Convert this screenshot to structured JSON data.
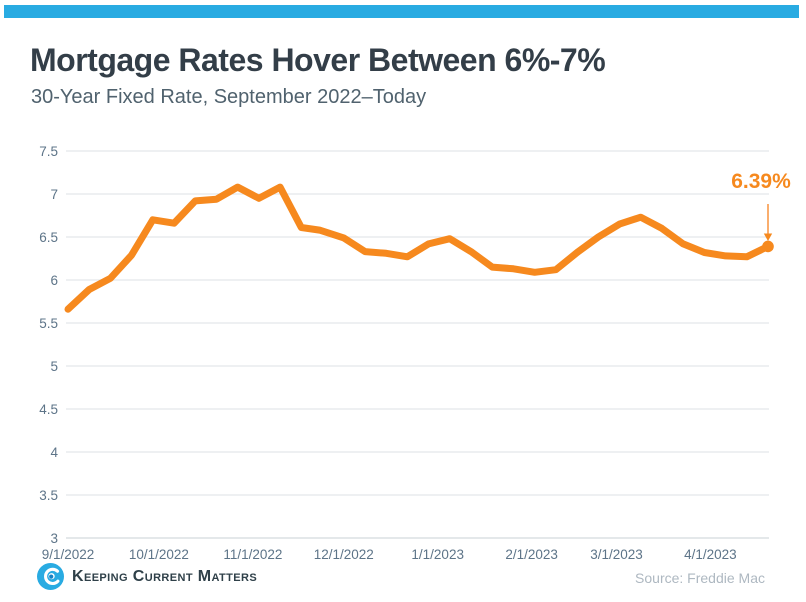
{
  "header": {
    "title": "Mortgage Rates Hover Between 6%-7%",
    "subtitle": "30-Year Fixed Rate, September 2022–Today"
  },
  "chart_data": {
    "type": "line",
    "title": "Mortgage Rates Hover Between 6%-7%",
    "subtitle": "30-Year Fixed Rate, September 2022–Today",
    "series": [
      {
        "name": "30-Year Fixed Rate (%)",
        "color": "#F6891E",
        "dates": [
          "9/1/2022",
          "9/8/2022",
          "9/15/2022",
          "9/22/2022",
          "9/29/2022",
          "10/6/2022",
          "10/13/2022",
          "10/20/2022",
          "10/27/2022",
          "11/3/2022",
          "11/10/2022",
          "11/17/2022",
          "11/23/2022",
          "12/1/2022",
          "12/8/2022",
          "12/15/2022",
          "12/22/2022",
          "12/29/2022",
          "1/5/2023",
          "1/12/2023",
          "1/19/2023",
          "1/26/2023",
          "2/2/2023",
          "2/9/2023",
          "2/16/2023",
          "2/23/2023",
          "3/2/2023",
          "3/9/2023",
          "3/16/2023",
          "3/23/2023",
          "3/30/2023",
          "4/6/2023",
          "4/13/2023",
          "4/20/2023"
        ],
        "values": [
          5.66,
          5.89,
          6.02,
          6.29,
          6.7,
          6.66,
          6.92,
          6.94,
          7.08,
          6.95,
          7.08,
          6.61,
          6.58,
          6.49,
          6.33,
          6.31,
          6.27,
          6.42,
          6.48,
          6.33,
          6.15,
          6.13,
          6.09,
          6.12,
          6.32,
          6.5,
          6.65,
          6.73,
          6.6,
          6.42,
          6.32,
          6.28,
          6.27,
          6.39
        ]
      }
    ],
    "ylim": [
      3,
      7.5
    ],
    "yticks": [
      "7.5",
      "7",
      "6.5",
      "6",
      "5.5",
      "5",
      "4.5",
      "4",
      "3.5",
      "3"
    ],
    "xtick_labels": [
      "9/1/2022",
      "10/1/2022",
      "11/1/2022",
      "12/1/2022",
      "1/1/2023",
      "2/1/2023",
      "3/1/2023",
      "4/1/2023"
    ],
    "grid": true,
    "legend": false,
    "annotation": {
      "label": "6.39%",
      "date": "4/20/2023",
      "value": 6.39
    }
  },
  "footer": {
    "brand": "Keeping Current Matters",
    "source": "Source: Freddie Mac"
  },
  "colors": {
    "accent_bar": "#29ABE2",
    "line": "#F6891E",
    "annotation": "#F6891E",
    "arrow": "#F9A55E",
    "title_text": "#333E48",
    "subtitle_text": "#50626E",
    "axis_labels": "#5D7488",
    "gridline": "#E3E6E9",
    "baseline": "#D4D9DD",
    "source_text": "#AEB8C1",
    "logo_blue": "#29ABE2",
    "logo_blue_dark": "#1581C4"
  }
}
